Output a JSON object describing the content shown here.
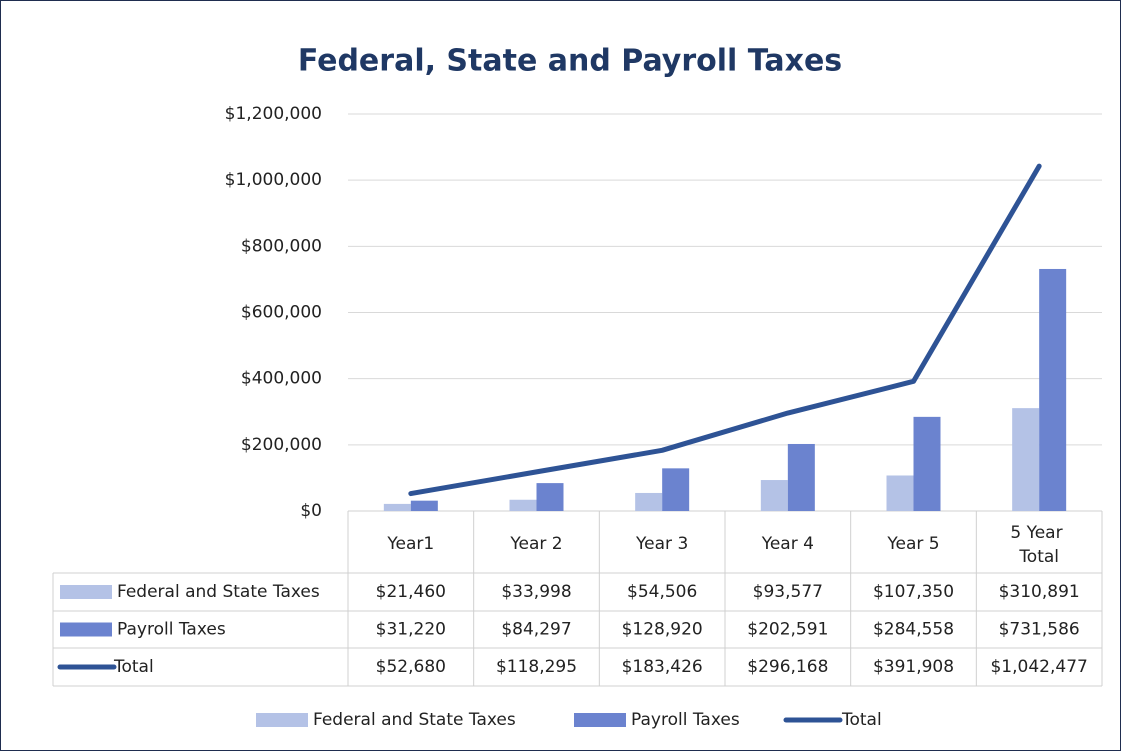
{
  "chart_data": {
    "type": "bar",
    "title": "Federal, State and Payroll Taxes",
    "categories": [
      "Year1",
      "Year 2",
      "Year 3",
      "Year 4",
      "Year 5",
      "5 Year Total"
    ],
    "series": [
      {
        "name": "Federal and State Taxes",
        "type": "bar",
        "color": "#b4c2e6",
        "values": [
          21460,
          33998,
          54506,
          93577,
          107350,
          310891
        ],
        "value_labels": [
          "$21,460",
          "$33,998",
          "$54,506",
          "$93,577",
          "$107,350",
          "$310,891"
        ]
      },
      {
        "name": "Payroll Taxes",
        "type": "bar",
        "color": "#6b83cf",
        "values": [
          31220,
          84297,
          128920,
          202591,
          284558,
          731586
        ],
        "value_labels": [
          "$31,220",
          "$84,297",
          "$128,920",
          "$202,591",
          "$284,558",
          "$731,586"
        ]
      },
      {
        "name": "Total",
        "type": "line",
        "color": "#2e5395",
        "values": [
          52680,
          118295,
          183426,
          296168,
          391908,
          1042477
        ],
        "value_labels": [
          "$52,680",
          "$118,295",
          "$183,426",
          "$296,168",
          "$391,908",
          "$1,042,477"
        ]
      }
    ],
    "ylim": [
      0,
      1200000
    ],
    "yticks": [
      {
        "value": 0,
        "label": "$0"
      },
      {
        "value": 200000,
        "label": "$200,000"
      },
      {
        "value": 400000,
        "label": "$400,000"
      },
      {
        "value": 600000,
        "label": "$600,000"
      },
      {
        "value": 800000,
        "label": "$800,000"
      },
      {
        "value": 1000000,
        "label": "$1,000,000"
      },
      {
        "value": 1200000,
        "label": "$1,200,000"
      }
    ],
    "grid": true,
    "legend": "bottom"
  }
}
